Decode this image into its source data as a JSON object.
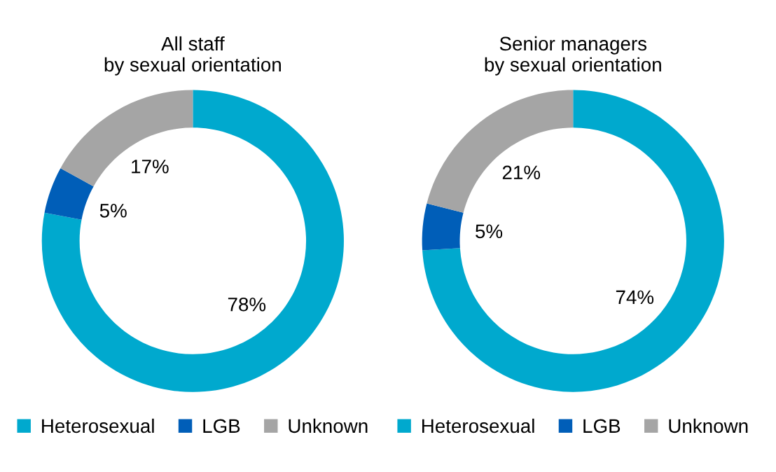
{
  "chart_data": [
    {
      "type": "donut",
      "title": "All staff\nby sexual orientation",
      "categories": [
        "Heterosexual",
        "LGB",
        "Unknown"
      ],
      "values": [
        78,
        5,
        17
      ],
      "colors": [
        "#00a9ce",
        "#005eb8",
        "#a5a5a5"
      ],
      "value_labels": [
        "78%",
        "5%",
        "17%"
      ],
      "legend": "bottom"
    },
    {
      "type": "donut",
      "title": "Senior managers\nby sexual orientation",
      "categories": [
        "Heterosexual",
        "LGB",
        "Unknown"
      ],
      "values": [
        74,
        5,
        21
      ],
      "colors": [
        "#00a9ce",
        "#005eb8",
        "#a5a5a5"
      ],
      "value_labels": [
        "74%",
        "5%",
        "21%"
      ],
      "legend": "bottom"
    }
  ]
}
